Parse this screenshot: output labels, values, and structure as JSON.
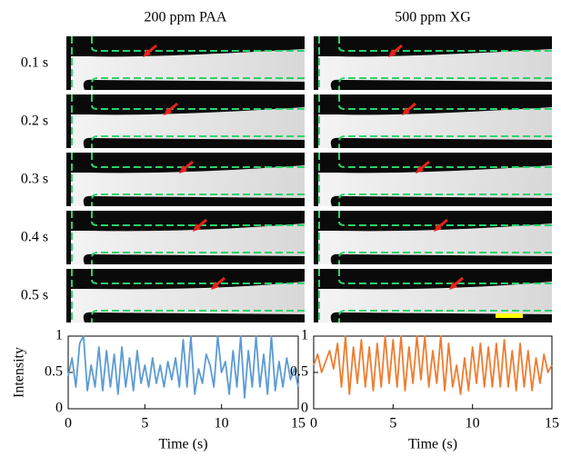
{
  "column_titles": [
    "200 ppm  PAA",
    "500 ppm  XG"
  ],
  "row_labels": [
    "0.1 s",
    "0.2 s",
    "0.3 s",
    "0.4 s",
    "0.5 s"
  ],
  "chart_data": [
    {
      "type": "line",
      "y_label": "Intensity",
      "x_label": "Time (s)",
      "x": [
        0,
        0.25,
        0.5,
        0.75,
        1,
        1.25,
        1.5,
        1.75,
        2,
        2.25,
        2.5,
        2.75,
        3,
        3.25,
        3.5,
        3.75,
        4,
        4.25,
        4.5,
        4.75,
        5,
        5.25,
        5.5,
        5.75,
        6,
        6.25,
        6.5,
        6.75,
        7,
        7.25,
        7.5,
        7.75,
        8,
        8.25,
        8.5,
        8.75,
        9,
        9.25,
        9.5,
        9.75,
        10,
        10.25,
        10.5,
        10.75,
        11,
        11.25,
        11.5,
        11.75,
        12,
        12.25,
        12.5,
        12.75,
        13,
        13.25,
        13.5,
        13.75,
        14,
        14.25,
        14.5,
        14.75,
        15
      ],
      "series": [
        {
          "color": "#5b9bd5",
          "values": [
            0.45,
            0.7,
            0.3,
            0.9,
            1,
            0.25,
            0.6,
            0.3,
            0.85,
            0.25,
            0.8,
            0.3,
            0.75,
            0.2,
            0.85,
            0.3,
            0.7,
            0.25,
            0.8,
            0.35,
            0.6,
            0.3,
            0.7,
            0.35,
            0.6,
            0.3,
            0.65,
            0.4,
            0.7,
            0.3,
            0.95,
            0.3,
            1,
            0.2,
            0.55,
            0.35,
            0.75,
            0.6,
            0.3,
            1,
            0.5,
            0.65,
            0.2,
            0.8,
            0.3,
            1,
            0.15,
            0.8,
            0.3,
            1,
            0.3,
            0.75,
            0.2,
            1,
            0.25,
            0.65,
            0.3,
            0.7,
            0.4,
            0.55,
            0.3
          ]
        }
      ],
      "xlim": [
        0,
        15
      ],
      "xticks": [
        0,
        5,
        10,
        15
      ],
      "ylim": [
        0,
        1
      ],
      "yticks": [
        0,
        0.5,
        1
      ]
    },
    {
      "type": "line",
      "x_label": "Time (s)",
      "x": [
        0,
        0.25,
        0.5,
        0.75,
        1,
        1.25,
        1.5,
        1.75,
        2,
        2.25,
        2.5,
        2.75,
        3,
        3.25,
        3.5,
        3.75,
        4,
        4.25,
        4.5,
        4.75,
        5,
        5.25,
        5.5,
        5.75,
        6,
        6.25,
        6.5,
        6.75,
        7,
        7.25,
        7.5,
        7.75,
        8,
        8.25,
        8.5,
        8.75,
        9,
        9.25,
        9.5,
        9.75,
        10,
        10.25,
        10.5,
        10.75,
        11,
        11.25,
        11.5,
        11.75,
        12,
        12.25,
        12.5,
        12.75,
        13,
        13.25,
        13.5,
        13.75,
        14,
        14.25,
        14.5,
        14.75,
        15
      ],
      "series": [
        {
          "color": "#ed7d31",
          "values": [
            0.6,
            0.75,
            0.5,
            0.65,
            0.8,
            0.55,
            0.9,
            0.3,
            1,
            0.2,
            0.85,
            0.35,
            0.95,
            0.3,
            0.85,
            0.25,
            0.9,
            0.3,
            1,
            0.35,
            0.95,
            0.3,
            1,
            0.25,
            0.85,
            0.35,
            1,
            0.4,
            1,
            0.3,
            0.8,
            0.35,
            1,
            0.25,
            0.9,
            0.3,
            0.6,
            0.2,
            0.7,
            0.25,
            0.85,
            0.35,
            0.9,
            0.3,
            0.85,
            0.3,
            0.9,
            0.3,
            0.95,
            0.3,
            0.8,
            0.25,
            0.9,
            0.3,
            0.8,
            0.25,
            0.7,
            0.35,
            0.75,
            0.5,
            0.6
          ]
        }
      ],
      "xlim": [
        0,
        15
      ],
      "xticks": [
        0,
        5,
        10,
        15
      ],
      "ylim": [
        0,
        1
      ],
      "yticks": [
        0,
        0.5,
        1
      ]
    }
  ]
}
